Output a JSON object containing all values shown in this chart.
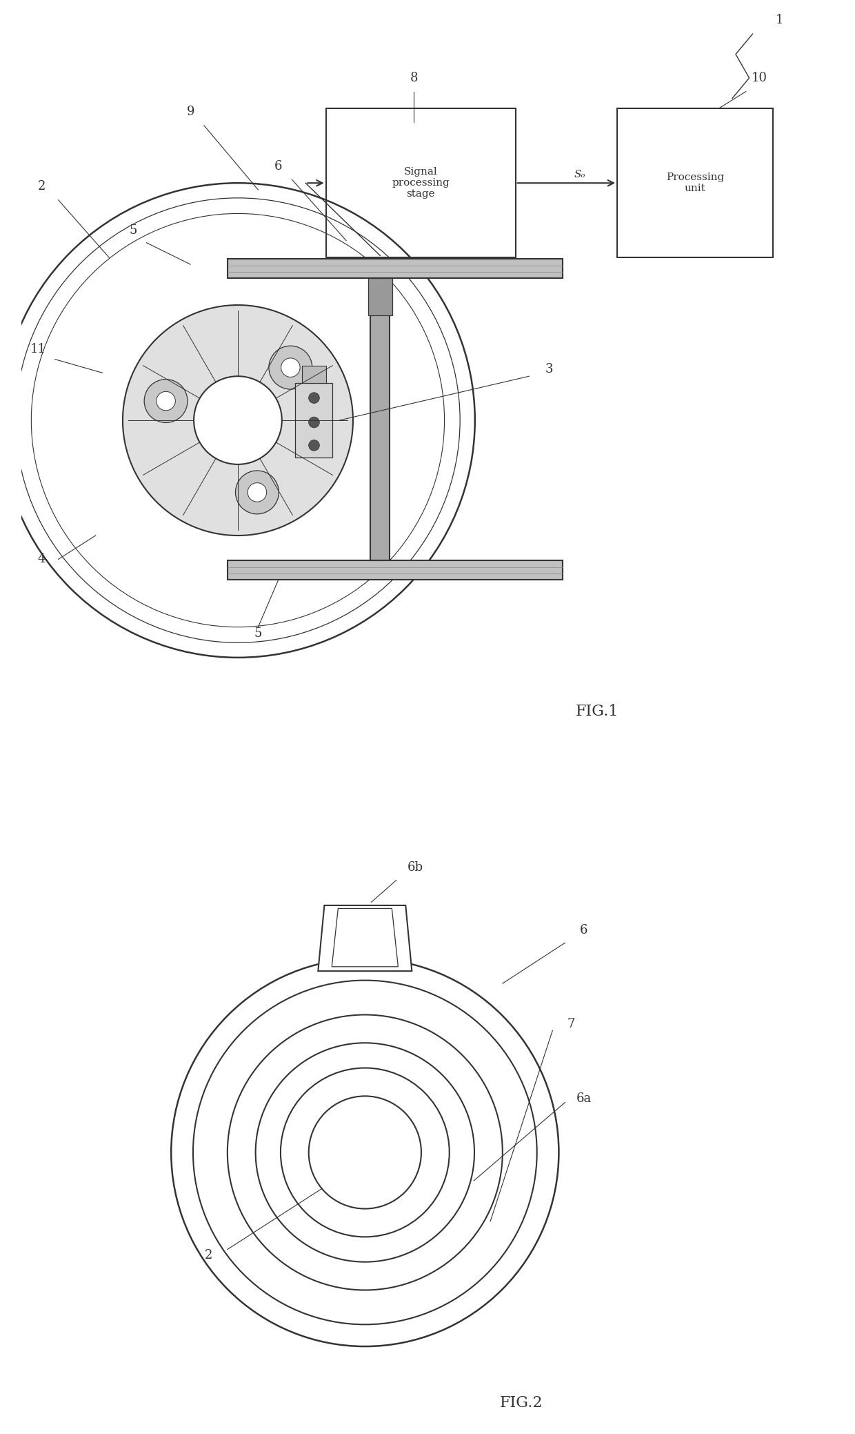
{
  "bg_color": "#ffffff",
  "line_color": "#333333",
  "fig1_title": "FIG.1",
  "fig2_title": "FIG.2",
  "signal_box_text": "Signal\nprocessing\nstage",
  "processing_box_text": "Processing\nunit",
  "label_1": "1",
  "label_2": "2",
  "label_3": "3",
  "label_4": "4",
  "label_5a": "5",
  "label_5b": "5",
  "label_6": "6",
  "label_6a": "6a",
  "label_6b": "6b",
  "label_7": "7",
  "label_8": "8",
  "label_9": "9",
  "label_10": "10",
  "label_11": "11",
  "label_So": "Sₒ",
  "font_size_labels": 13,
  "font_size_fig": 16
}
